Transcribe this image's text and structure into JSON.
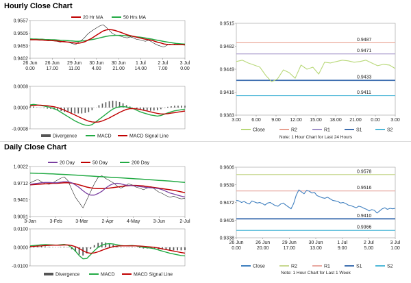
{
  "sections": [
    {
      "title": "Hourly Close Chart"
    },
    {
      "title": "Daily Close Chart"
    }
  ],
  "colors": {
    "ma_short": "#c00000",
    "ma_long": "#22aa44",
    "ma_mid": "#7a3fa0",
    "ma_200": "#22aa44",
    "price": "#222222",
    "divergence": "#555555",
    "macd": "#22aa44",
    "signal": "#c00000",
    "r2": "#e8a090",
    "r1": "#a090c8",
    "s1": "#3f6fb0",
    "s2": "#4fb8d8",
    "close_hourly": "#b8d878",
    "close_daily": "#3f7fbf",
    "r1_daily": "#e8a8a0",
    "r2_daily": "#c8d890"
  },
  "chart_data": [
    {
      "id": "hourly_price",
      "type": "line",
      "legend": [
        "20 Hr MA",
        "50 Hrs MA"
      ],
      "yticks": [
        "0.9557",
        "0.9505",
        "0.9453",
        "0.9402"
      ],
      "ylim": [
        0.9402,
        0.9557
      ],
      "xticks": [
        [
          "26 Jun",
          "0.00"
        ],
        [
          "26 Jun",
          "17.00"
        ],
        [
          "29 Jun",
          "11.00"
        ],
        [
          "30 Jun",
          "4.00"
        ],
        [
          "30 Jun",
          "21.00"
        ],
        [
          "1 Jul",
          "14.00"
        ],
        [
          "2 Jul",
          "7.00"
        ],
        [
          "3 Jul",
          "0.00"
        ]
      ],
      "series": [
        {
          "name": "Price",
          "values": [
            0.9478,
            0.948,
            0.9479,
            0.9476,
            0.9477,
            0.9475,
            0.9474,
            0.9476,
            0.9473,
            0.9471,
            0.9468,
            0.9472,
            0.947,
            0.9466,
            0.9462,
            0.9458,
            0.947,
            0.9476,
            0.9488,
            0.9502,
            0.9512,
            0.952,
            0.9528,
            0.9535,
            0.954,
            0.953,
            0.9518,
            0.9505,
            0.9498,
            0.9495,
            0.9492,
            0.9488,
            0.9486,
            0.949,
            0.9486,
            0.948,
            0.9478,
            0.9474,
            0.9472,
            0.9476,
            0.947,
            0.9462,
            0.9456,
            0.9452,
            0.9448,
            0.9455,
            0.946,
            0.9458,
            0.9462,
            0.9459,
            0.9457,
            0.9456
          ]
        },
        {
          "name": "20 Hr MA",
          "values": [
            0.9478,
            0.9478,
            0.9478,
            0.9477,
            0.9477,
            0.9476,
            0.9475,
            0.9475,
            0.9474,
            0.9473,
            0.9471,
            0.947,
            0.9469,
            0.9468,
            0.9466,
            0.9464,
            0.9464,
            0.9466,
            0.947,
            0.9476,
            0.9482,
            0.949,
            0.9498,
            0.9506,
            0.9514,
            0.9518,
            0.952,
            0.9519,
            0.9516,
            0.9512,
            0.9508,
            0.9503,
            0.9498,
            0.9495,
            0.9492,
            0.9489,
            0.9486,
            0.9483,
            0.948,
            0.9478,
            0.9476,
            0.9472,
            0.9468,
            0.9465,
            0.9461,
            0.9459,
            0.9458,
            0.9458,
            0.9458,
            0.9458,
            0.9458,
            0.9457
          ]
        },
        {
          "name": "50 Hrs MA",
          "values": [
            0.9482,
            0.9481,
            0.9481,
            0.948,
            0.948,
            0.9479,
            0.9479,
            0.9478,
            0.9478,
            0.9477,
            0.9476,
            0.9476,
            0.9475,
            0.9474,
            0.9473,
            0.9472,
            0.9472,
            0.9473,
            0.9474,
            0.9476,
            0.9478,
            0.948,
            0.9483,
            0.9486,
            0.9489,
            0.9492,
            0.9494,
            0.9495,
            0.9496,
            0.9496,
            0.9496,
            0.9495,
            0.9494,
            0.9493,
            0.9492,
            0.949,
            0.9489,
            0.9487,
            0.9485,
            0.9483,
            0.9481,
            0.9478,
            0.9476,
            0.9474,
            0.9471,
            0.9469,
            0.9467,
            0.9465,
            0.9463,
            0.9462,
            0.9461,
            0.946
          ]
        }
      ]
    },
    {
      "id": "hourly_macd",
      "type": "line",
      "legend": [
        "Divergence",
        "MACD",
        "MACD Signal Line"
      ],
      "yticks": [
        "0.0008",
        "0.0000",
        "-0.0008"
      ],
      "ylim": [
        -0.0008,
        0.0008
      ],
      "series": [
        {
          "name": "MACD",
          "values": [
            0.0001,
            0.00012,
            0.0001,
            8e-05,
            6e-05,
            3e-05,
            0.0,
            -4e-05,
            -0.0001,
            -0.00018,
            -0.00026,
            -0.00034,
            -0.00042,
            -0.0005,
            -0.00056,
            -0.00062,
            -0.00066,
            -0.00068,
            -0.00064,
            -0.00055,
            -0.00045,
            -0.00035,
            -0.00025,
            -0.00015,
            -6e-05,
            0.0,
            3e-05,
            4e-05,
            2e-05,
            0.0,
            -4e-05,
            -0.0001,
            -0.00016,
            -0.0002,
            -0.00024,
            -0.00028,
            -0.0003,
            -0.00032,
            -0.0003,
            -0.00025,
            -0.0002,
            -0.00016,
            -0.00012,
            -0.0001,
            -8e-05,
            -6e-05
          ]
        },
        {
          "name": "MACD Signal Line",
          "values": [
            6e-05,
            8e-05,
            9e-05,
            9e-05,
            8e-05,
            7e-05,
            5e-05,
            3e-05,
            0.0,
            -5e-05,
            -0.0001,
            -0.00016,
            -0.00022,
            -0.00028,
            -0.00034,
            -0.0004,
            -0.00046,
            -0.00051,
            -0.00054,
            -0.00055,
            -0.00054,
            -0.0005,
            -0.00045,
            -0.00039,
            -0.00032,
            -0.00025,
            -0.00018,
            -0.00012,
            -7e-05,
            -4e-05,
            -4e-05,
            -5e-05,
            -7e-05,
            -0.0001,
            -0.00013,
            -0.00016,
            -0.00019,
            -0.00022,
            -0.00024,
            -0.00024,
            -0.00023,
            -0.00021,
            -0.00019,
            -0.00017,
            -0.00015,
            -0.00013
          ]
        },
        {
          "name": "Divergence",
          "values": [
            4e-05,
            4e-05,
            1e-05,
            -1e-05,
            -2e-05,
            -4e-05,
            -5e-05,
            -7e-05,
            -0.0001,
            -0.00013,
            -0.00016,
            -0.00018,
            -0.0002,
            -0.00022,
            -0.00022,
            -0.00022,
            -0.0002,
            -0.00017,
            -0.0001,
            0.0,
            9e-05,
            0.00015,
            0.0002,
            0.00024,
            0.00026,
            0.00025,
            0.00021,
            0.00016,
            9e-05,
            4e-05,
            0.0,
            -5e-05,
            -9e-05,
            -0.0001,
            -0.00011,
            -0.00012,
            -0.00011,
            -0.0001,
            -6e-05,
            -1e-05,
            3e-05,
            5e-05,
            7e-05,
            7e-05,
            7e-05,
            7e-05
          ]
        }
      ]
    },
    {
      "id": "hourly_levels",
      "type": "line",
      "yticks": [
        "0.9515",
        "0.9482",
        "0.9449",
        "0.9416",
        "0.9383"
      ],
      "ylim": [
        0.9383,
        0.9515
      ],
      "xticks": [
        "3.00",
        "6.00",
        "9.00",
        "12.00",
        "15.00",
        "18.00",
        "21.00",
        "0.00",
        "3.00"
      ],
      "levels": [
        {
          "name": "R2",
          "value": 0.9487,
          "label": "0.9487"
        },
        {
          "name": "R1",
          "value": 0.9471,
          "label": "0.9471"
        },
        {
          "name": "S1",
          "value": 0.9433,
          "label": "0.9433"
        },
        {
          "name": "S2",
          "value": 0.9411,
          "label": "0.9411"
        }
      ],
      "series": [
        {
          "name": "Close",
          "values": [
            0.946,
            0.9462,
            0.9458,
            0.9455,
            0.9452,
            0.944,
            0.9431,
            0.9435,
            0.9448,
            0.9444,
            0.9436,
            0.9455,
            0.9449,
            0.9452,
            0.9442,
            0.9459,
            0.9458,
            0.946,
            0.9462,
            0.9461,
            0.9459,
            0.946,
            0.9462,
            0.9458,
            0.9454,
            0.9456,
            0.9455,
            0.945
          ]
        }
      ],
      "legend": [
        "Close",
        "R2",
        "R1",
        "S1",
        "S2"
      ],
      "note": "Note: 1 Hour Chart for Last 24 Hours"
    },
    {
      "id": "daily_price",
      "type": "line",
      "legend": [
        "20 Day",
        "50 Day",
        "200 Day"
      ],
      "yticks": [
        "1.0022",
        "0.9712",
        "0.9401",
        "0.9091"
      ],
      "ylim": [
        0.9091,
        1.0022
      ],
      "xticks": [
        "3-Jan",
        "3-Feb",
        "3-Mar",
        "2-Apr",
        "4-May",
        "3-Jun",
        "2-Jul"
      ],
      "series": [
        {
          "name": "Price",
          "values": [
            0.972,
            0.975,
            0.978,
            0.974,
            0.97,
            0.969,
            0.972,
            0.976,
            0.98,
            0.983,
            0.976,
            0.96,
            0.945,
            0.935,
            0.925,
            0.94,
            0.955,
            0.97,
            0.982,
            0.985,
            0.98,
            0.976,
            0.972,
            0.966,
            0.962,
            0.965,
            0.97,
            0.968,
            0.964,
            0.962,
            0.959,
            0.962,
            0.965,
            0.96,
            0.955,
            0.952,
            0.948,
            0.945,
            0.947,
            0.944,
            0.942,
            0.943
          ]
        },
        {
          "name": "20 Day",
          "values": [
            0.969,
            0.97,
            0.971,
            0.972,
            0.9725,
            0.9725,
            0.972,
            0.972,
            0.973,
            0.974,
            0.974,
            0.972,
            0.968,
            0.963,
            0.957,
            0.952,
            0.949,
            0.949,
            0.952,
            0.956,
            0.962,
            0.967,
            0.97,
            0.971,
            0.97,
            0.968,
            0.967,
            0.9665,
            0.966,
            0.965,
            0.964,
            0.963,
            0.9625,
            0.962,
            0.961,
            0.959,
            0.956,
            0.953,
            0.951,
            0.949,
            0.947,
            0.9455
          ]
        },
        {
          "name": "50 Day",
          "values": [
            0.968,
            0.9685,
            0.969,
            0.9695,
            0.97,
            0.9705,
            0.971,
            0.971,
            0.9715,
            0.972,
            0.972,
            0.9715,
            0.97,
            0.968,
            0.966,
            0.964,
            0.9625,
            0.9615,
            0.961,
            0.961,
            0.9615,
            0.962,
            0.963,
            0.964,
            0.965,
            0.966,
            0.9665,
            0.967,
            0.967,
            0.9665,
            0.966,
            0.965,
            0.964,
            0.963,
            0.962,
            0.961,
            0.96,
            0.959,
            0.958,
            0.9565,
            0.955,
            0.9535
          ]
        },
        {
          "name": "200 Day",
          "values": [
            0.99,
            0.9898,
            0.9895,
            0.9893,
            0.989,
            0.9887,
            0.9884,
            0.988,
            0.9877,
            0.9874,
            0.987,
            0.9866,
            0.9862,
            0.9858,
            0.9853,
            0.9849,
            0.9845,
            0.984,
            0.9836,
            0.9832,
            0.9828,
            0.9823,
            0.9819,
            0.9815,
            0.9811,
            0.9806,
            0.9802,
            0.9798,
            0.9793,
            0.9789,
            0.9785,
            0.978,
            0.9775,
            0.977,
            0.9765,
            0.976,
            0.9755,
            0.975,
            0.9744,
            0.9738,
            0.9732,
            0.9726
          ]
        }
      ]
    },
    {
      "id": "daily_macd",
      "type": "line",
      "legend": [
        "Divergence",
        "MACD",
        "MACD Signal Line"
      ],
      "yticks": [
        "0.0100",
        "0.0000",
        "-0.0100"
      ],
      "ylim": [
        -0.01,
        0.01
      ],
      "series": [
        {
          "name": "MACD",
          "values": [
            0.0008,
            0.001,
            0.0012,
            0.0014,
            0.0015,
            0.0014,
            0.0013,
            0.0012,
            0.0014,
            0.0016,
            0.0012,
            0.0,
            -0.002,
            -0.0045,
            -0.0062,
            -0.006,
            -0.004,
            -0.0018,
            0.0,
            0.0012,
            0.0018,
            0.002,
            0.0018,
            0.0014,
            0.001,
            0.0008,
            0.0009,
            0.001,
            0.0008,
            0.0004,
            0.0,
            -0.0002,
            -0.0004,
            -0.0008,
            -0.0014,
            -0.002,
            -0.0026,
            -0.0032,
            -0.0036,
            -0.004,
            -0.0044,
            -0.0046
          ]
        },
        {
          "name": "MACD Signal Line",
          "values": [
            0.0004,
            0.0005,
            0.0007,
            0.0008,
            0.001,
            0.0011,
            0.0012,
            0.0012,
            0.0012,
            0.0013,
            0.0013,
            0.001,
            0.0004,
            -0.0006,
            -0.0018,
            -0.0028,
            -0.0032,
            -0.003,
            -0.0024,
            -0.0016,
            -0.0008,
            -0.0002,
            0.0004,
            0.0007,
            0.0008,
            0.0008,
            0.0008,
            0.0008,
            0.0008,
            0.0007,
            0.0006,
            0.0004,
            0.0002,
            0.0,
            -0.0004,
            -0.0008,
            -0.0012,
            -0.0016,
            -0.002,
            -0.0024,
            -0.0028,
            -0.0031
          ]
        },
        {
          "name": "Divergence",
          "values": [
            0.0004,
            0.0005,
            0.0005,
            0.0006,
            0.0005,
            0.0003,
            0.0001,
            0.0,
            0.0002,
            0.0003,
            -0.0001,
            -0.001,
            -0.0024,
            -0.0039,
            -0.0044,
            -0.0032,
            -0.0008,
            0.0012,
            0.0024,
            0.0028,
            0.0026,
            0.0022,
            0.0014,
            0.0007,
            0.0002,
            0.0,
            0.0001,
            0.0002,
            0.0,
            -0.0003,
            -0.0006,
            -0.0006,
            -0.0006,
            -0.0008,
            -0.001,
            -0.0012,
            -0.0014,
            -0.0016,
            -0.0016,
            -0.0016,
            -0.0016,
            -0.0015
          ]
        }
      ]
    },
    {
      "id": "daily_levels",
      "type": "line",
      "yticks": [
        "0.9606",
        "0.9539",
        "0.9472",
        "0.9405",
        "0.9338"
      ],
      "ylim": [
        0.9338,
        0.9606
      ],
      "xticks": [
        [
          "26 Jun",
          "0.00"
        ],
        [
          "26 Jun",
          "20.00"
        ],
        [
          "29 Jun",
          "17.00"
        ],
        [
          "30 Jun",
          "13.00"
        ],
        [
          "1 Jul",
          "9.00"
        ],
        [
          "2 Jul",
          "5.00"
        ],
        [
          "3 Jul",
          "1.00"
        ]
      ],
      "levels": [
        {
          "name": "R2",
          "value": 0.9578,
          "label": "0.9578"
        },
        {
          "name": "R1",
          "value": 0.9516,
          "label": "0.9516"
        },
        {
          "name": "S1",
          "value": 0.941,
          "label": "0.9410"
        },
        {
          "name": "S2",
          "value": 0.9366,
          "label": "0.9366"
        }
      ],
      "series": [
        {
          "name": "Close",
          "values": [
            0.948,
            0.9478,
            0.9472,
            0.9476,
            0.947,
            0.9466,
            0.9478,
            0.9474,
            0.947,
            0.9472,
            0.9468,
            0.9462,
            0.947,
            0.9472,
            0.9466,
            0.946,
            0.9458,
            0.9466,
            0.947,
            0.9462,
            0.9455,
            0.9448,
            0.9468,
            0.95,
            0.952,
            0.9512,
            0.9505,
            0.9518,
            0.9515,
            0.9508,
            0.951,
            0.9498,
            0.9494,
            0.949,
            0.9488,
            0.9492,
            0.9486,
            0.948,
            0.9478,
            0.9476,
            0.947,
            0.9472,
            0.9468,
            0.9462,
            0.946,
            0.9456,
            0.9452,
            0.9458,
            0.9455,
            0.945,
            0.9446,
            0.944,
            0.9445,
            0.9442,
            0.9432,
            0.944,
            0.9448,
            0.9452,
            0.9446,
            0.945,
            0.9448,
            0.945
          ]
        }
      ],
      "legend": [
        "Close",
        "R2",
        "R1",
        "S1",
        "S2"
      ],
      "note": "Note: 1 Hour Chart for Last 1 Week"
    }
  ]
}
